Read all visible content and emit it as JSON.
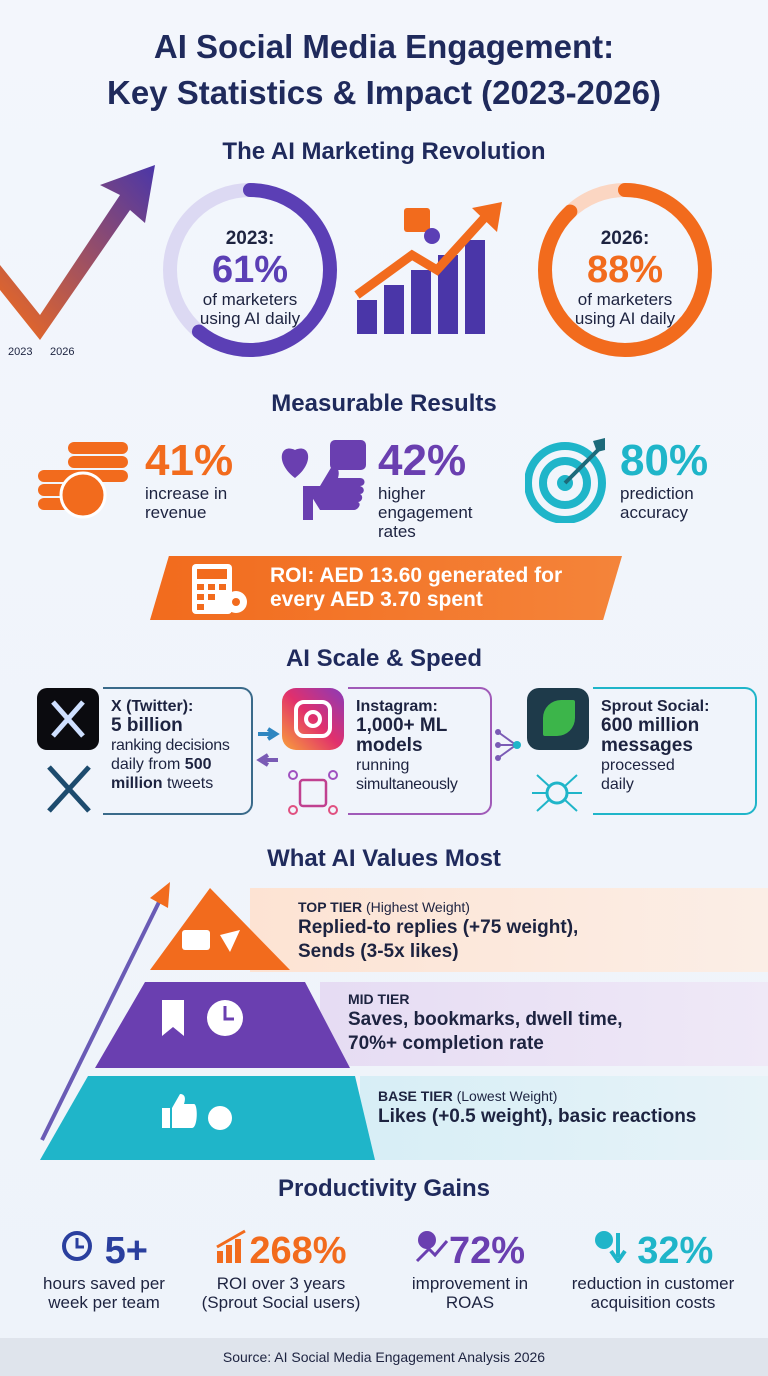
{
  "title": {
    "line1": "AI Social Media Engagement:",
    "line2": "Key Statistics & Impact (2023-2026)"
  },
  "colors": {
    "navy": "#1f2a5c",
    "purple": "#5b3fb5",
    "orange": "#f26b1d",
    "teal": "#1fb5c9"
  },
  "revolution": {
    "heading": "The AI Marketing Revolution",
    "arrow_labels": [
      "2023",
      "2026"
    ],
    "left": {
      "year": "2023:",
      "value": "61%",
      "text1": "of marketers",
      "text2": "using AI daily",
      "fill_percent": 61
    },
    "right": {
      "year": "2026:",
      "value": "88%",
      "text1": "of marketers",
      "text2": "using AI daily",
      "fill_percent": 88
    }
  },
  "results": {
    "heading": "Measurable Results",
    "items": [
      {
        "value": "41%",
        "l1": "increase in",
        "l2": "revenue",
        "l3": "",
        "icon": "coins-icon"
      },
      {
        "value": "42%",
        "l1": "higher",
        "l2": "engagement",
        "l3": "rates",
        "icon": "like-heart-icon"
      },
      {
        "value": "80%",
        "l1": "prediction",
        "l2": "accuracy",
        "l3": "",
        "icon": "target-icon"
      }
    ],
    "roi": {
      "line1": "ROI: AED 13.60 generated for",
      "line2": "every AED 3.70 spent"
    }
  },
  "scale": {
    "heading": "AI Scale & Speed",
    "x": {
      "title": "X (Twitter):",
      "bold": "5 billion",
      "t1": "ranking decisions",
      "t2": "daily from ",
      "t2b": "500",
      "t3b": "million",
      "t3": " tweets"
    },
    "instagram": {
      "title": "Instagram:",
      "bold1": "1,000+ ML",
      "bold2": "models",
      "t1": "running",
      "t2": "simultaneously"
    },
    "sprout": {
      "title": "Sprout Social:",
      "bold1": "600 million",
      "bold2": "messages",
      "t1": "processed",
      "t2": "daily"
    }
  },
  "values": {
    "heading": "What AI Values Most",
    "tiers": [
      {
        "name": "TOP TIER",
        "note": "(Highest Weight)",
        "l1": "Replied-to replies (+75 weight),",
        "l2": "Sends (3-5x likes)"
      },
      {
        "name": "MID TIER",
        "note": "",
        "l1": "Saves, bookmarks, dwell time,",
        "l2": "70%+ completion rate"
      },
      {
        "name": "BASE TIER",
        "note": "(Lowest Weight)",
        "l1": "Likes (+0.5 weight), basic reactions",
        "l2": ""
      }
    ]
  },
  "productivity": {
    "heading": "Productivity Gains",
    "items": [
      {
        "value": "5+",
        "l1": "hours saved per",
        "l2": "week per team"
      },
      {
        "value": "268%",
        "l1": "ROI over 3 years",
        "l2": "(Sprout Social users)"
      },
      {
        "value": "72%",
        "l1": "improvement in",
        "l2": "ROAS"
      },
      {
        "value": "32%",
        "l1": "reduction in customer",
        "l2": "acquisition costs"
      }
    ]
  },
  "footer": "Source: AI Social Media Engagement Analysis 2026"
}
